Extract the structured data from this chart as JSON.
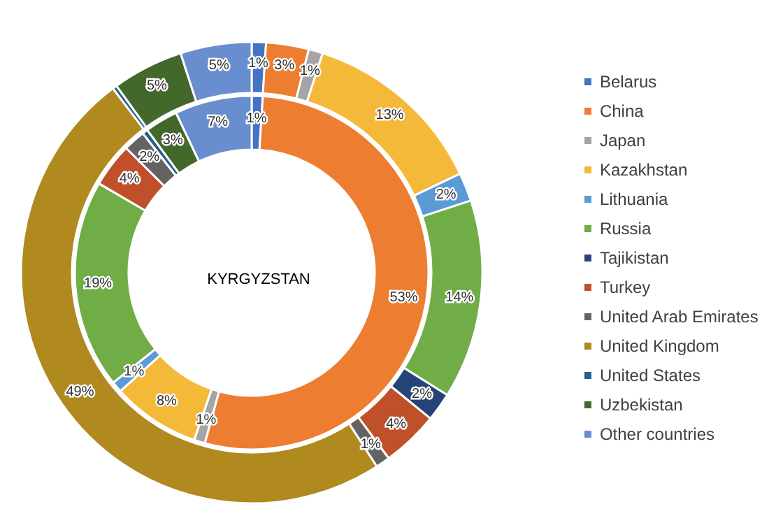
{
  "chart_data": {
    "type": "donut",
    "title": "KYRGYZSTAN",
    "categories": [
      "Belarus",
      "China",
      "Japan",
      "Kazakhstan",
      "Lithuania",
      "Russia",
      "Tajikistan",
      "Turkey",
      "United Arab Emirates",
      "United Kingdom",
      "United States",
      "Uzbekistan",
      "Other countries"
    ],
    "colors": [
      "#4472c4",
      "#ed7d31",
      "#a5a5a5",
      "#f5b93a",
      "#5b9bd5",
      "#70ad47",
      "#264478",
      "#c0502a",
      "#636363",
      "#b08a1e",
      "#255e91",
      "#43682b",
      "#698ed0"
    ],
    "series": [
      {
        "values": [
          1,
          53,
          1,
          8,
          1,
          19,
          0,
          4,
          2,
          0,
          0.5,
          3,
          7
        ],
        "value_labels": [
          "1%",
          "53%",
          "1%",
          "8%",
          "1%",
          "19%",
          null,
          "4%",
          "2%",
          null,
          null,
          "3%",
          "7%"
        ]
      },
      {
        "values": [
          1,
          3,
          1,
          13,
          2,
          14,
          2,
          4,
          1,
          49,
          0.3,
          5,
          5
        ],
        "value_labels": [
          "1%",
          "3%",
          "1%",
          "13%",
          "2%",
          "14%",
          "2%",
          "4%",
          "1%",
          "49%",
          null,
          "5%",
          "5%"
        ]
      }
    ],
    "legend": "right"
  }
}
